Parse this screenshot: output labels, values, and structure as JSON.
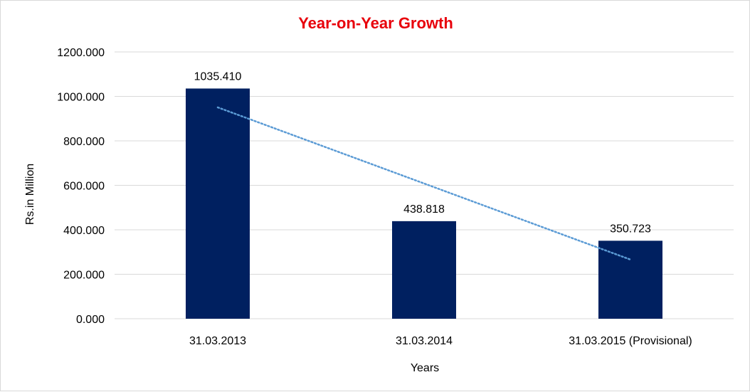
{
  "chart_data": {
    "type": "bar",
    "title": "Year-on-Year Growth",
    "xlabel": "Years",
    "ylabel": "Rs.in Million",
    "categories": [
      "31.03.2013",
      "31.03.2014",
      "31.03.2015 (Provisional)"
    ],
    "values": [
      1035.41,
      438.818,
      350.723
    ],
    "value_labels": [
      "1035.410",
      "438.818",
      "350.723"
    ],
    "ylim": [
      0,
      1200
    ],
    "yticks": [
      0,
      200,
      400,
      600,
      800,
      1000,
      1200
    ],
    "ytick_labels": [
      "0.000",
      "200.000",
      "400.000",
      "600.000",
      "800.000",
      "1000.000",
      "1200.000"
    ],
    "grid": true,
    "legend": "none",
    "trendline": "linear",
    "colors": {
      "bar": "#002060",
      "trendline": "#5b9bd5",
      "title": "#e8000b",
      "grid": "#d9d9d9"
    }
  }
}
